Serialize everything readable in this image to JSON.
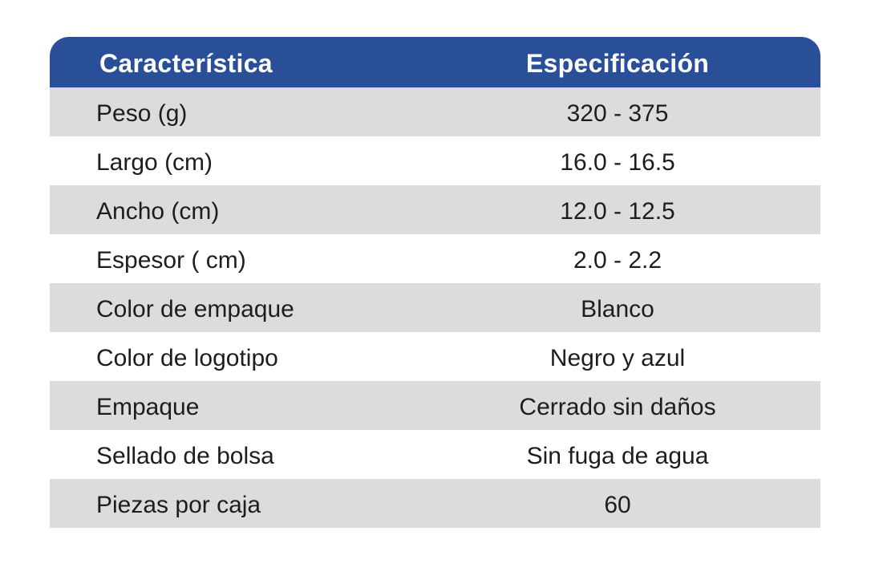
{
  "table": {
    "header": {
      "feature": "Característica",
      "spec": "Especificación"
    },
    "rows": [
      {
        "feature": "Peso (g)",
        "spec": "320 - 375"
      },
      {
        "feature": "Largo (cm)",
        "spec": "16.0 - 16.5"
      },
      {
        "feature": "Ancho (cm)",
        "spec": "12.0 - 12.5"
      },
      {
        "feature": "Espesor ( cm)",
        "spec": "2.0 - 2.2"
      },
      {
        "feature": "Color de empaque",
        "spec": "Blanco"
      },
      {
        "feature": "Color de logotipo",
        "spec": "Negro y azul"
      },
      {
        "feature": "Empaque",
        "spec": "Cerrado sin daños"
      },
      {
        "feature": "Sellado de bolsa",
        "spec": "Sin fuga de agua"
      },
      {
        "feature": "Piezas por caja",
        "spec": "60"
      }
    ]
  },
  "colors": {
    "header_bg": "#2a4f99",
    "row_shaded": "#dcdcdd",
    "row_plain": "#ffffff"
  }
}
